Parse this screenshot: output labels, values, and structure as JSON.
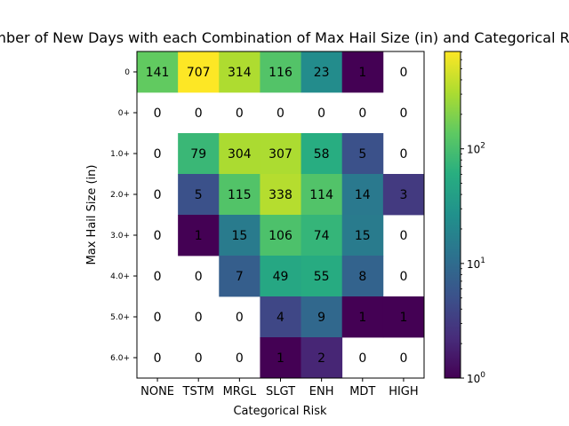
{
  "chart_data": {
    "type": "heatmap",
    "title": "Number of New Days with each Combination of Max Hail Size (in) and Categorical Risk",
    "xlabel": "Categorical Risk",
    "ylabel": "Max Hail Size (in)",
    "x_categories": [
      "NONE",
      "TSTM",
      "MRGL",
      "SLGT",
      "ENH",
      "MDT",
      "HIGH"
    ],
    "y_categories": [
      "0",
      "0+",
      "1.0+",
      "2.0+",
      "3.0+",
      "4.0+",
      "5.0+",
      "6.0+"
    ],
    "values": [
      [
        141,
        707,
        314,
        116,
        23,
        1,
        0
      ],
      [
        0,
        0,
        0,
        0,
        0,
        0,
        0
      ],
      [
        0,
        79,
        304,
        307,
        58,
        5,
        0
      ],
      [
        0,
        5,
        115,
        338,
        114,
        14,
        3
      ],
      [
        0,
        1,
        15,
        106,
        74,
        15,
        0
      ],
      [
        0,
        0,
        7,
        49,
        55,
        8,
        0
      ],
      [
        0,
        0,
        0,
        4,
        9,
        1,
        1
      ],
      [
        0,
        0,
        0,
        1,
        2,
        0,
        0
      ]
    ],
    "color_scale": "log",
    "colormap": "viridis",
    "vmin": 1,
    "vmax": 707,
    "zero_color": "#ffffff",
    "colorbar": {
      "ticks": [
        {
          "value": 1,
          "base": "10",
          "exp": "0"
        },
        {
          "value": 10,
          "base": "10",
          "exp": "1"
        },
        {
          "value": 100,
          "base": "10",
          "exp": "2"
        }
      ]
    }
  }
}
